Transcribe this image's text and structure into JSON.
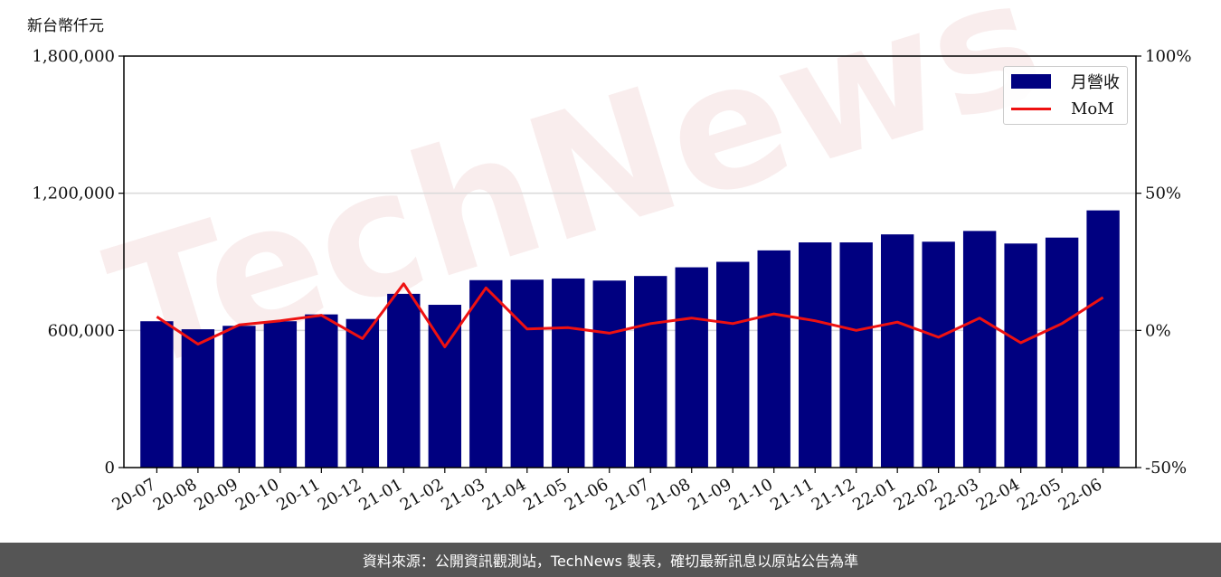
{
  "unit_label": "新台幣仟元",
  "footer_text": "資料來源：公開資訊觀測站，TechNews 製表，確切最新訊息以原站公告為準",
  "watermark_text": "TechNews",
  "colors": {
    "bar": "#000080",
    "line": "#ee1111",
    "grid": "#d9d9d9",
    "footer_bg": "#555555"
  },
  "chart_data": {
    "type": "bar",
    "categories": [
      "20-07",
      "20-08",
      "20-09",
      "20-10",
      "20-11",
      "20-12",
      "21-01",
      "21-02",
      "21-03",
      "21-04",
      "21-05",
      "21-06",
      "21-07",
      "21-08",
      "21-09",
      "21-10",
      "21-11",
      "21-12",
      "22-01",
      "22-02",
      "22-03",
      "22-04",
      "22-05",
      "22-06"
    ],
    "series": [
      {
        "name": "月營收",
        "type": "bar",
        "axis": "left",
        "values": [
          640000,
          605000,
          620000,
          640000,
          670000,
          650000,
          760000,
          712000,
          820000,
          822000,
          827000,
          818000,
          838000,
          876000,
          900000,
          950000,
          985000,
          985000,
          1020000,
          988000,
          1035000,
          980000,
          1006000,
          1125000
        ]
      },
      {
        "name": "MoM",
        "type": "line",
        "axis": "right",
        "values": [
          5.0,
          -5.0,
          2.0,
          3.5,
          5.5,
          -3.0,
          17.0,
          -6.0,
          15.5,
          0.5,
          1.0,
          -1.0,
          2.5,
          4.5,
          2.5,
          6.0,
          3.5,
          0.0,
          3.0,
          -2.5,
          4.5,
          -4.5,
          2.5,
          12.0
        ]
      }
    ],
    "y_left": {
      "lim": [
        0,
        1800000
      ],
      "ticks": [
        "0",
        "600,000",
        "1,200,000",
        "1,800,000"
      ],
      "tick_values": [
        0,
        600000,
        1200000,
        1800000
      ]
    },
    "y_right": {
      "lim": [
        -50,
        100
      ],
      "ticks": [
        "-50%",
        "0%",
        "50%",
        "100%"
      ],
      "tick_values": [
        -50,
        0,
        50,
        100
      ]
    },
    "gridlines": "horizontal",
    "legend_position": "top-right"
  }
}
